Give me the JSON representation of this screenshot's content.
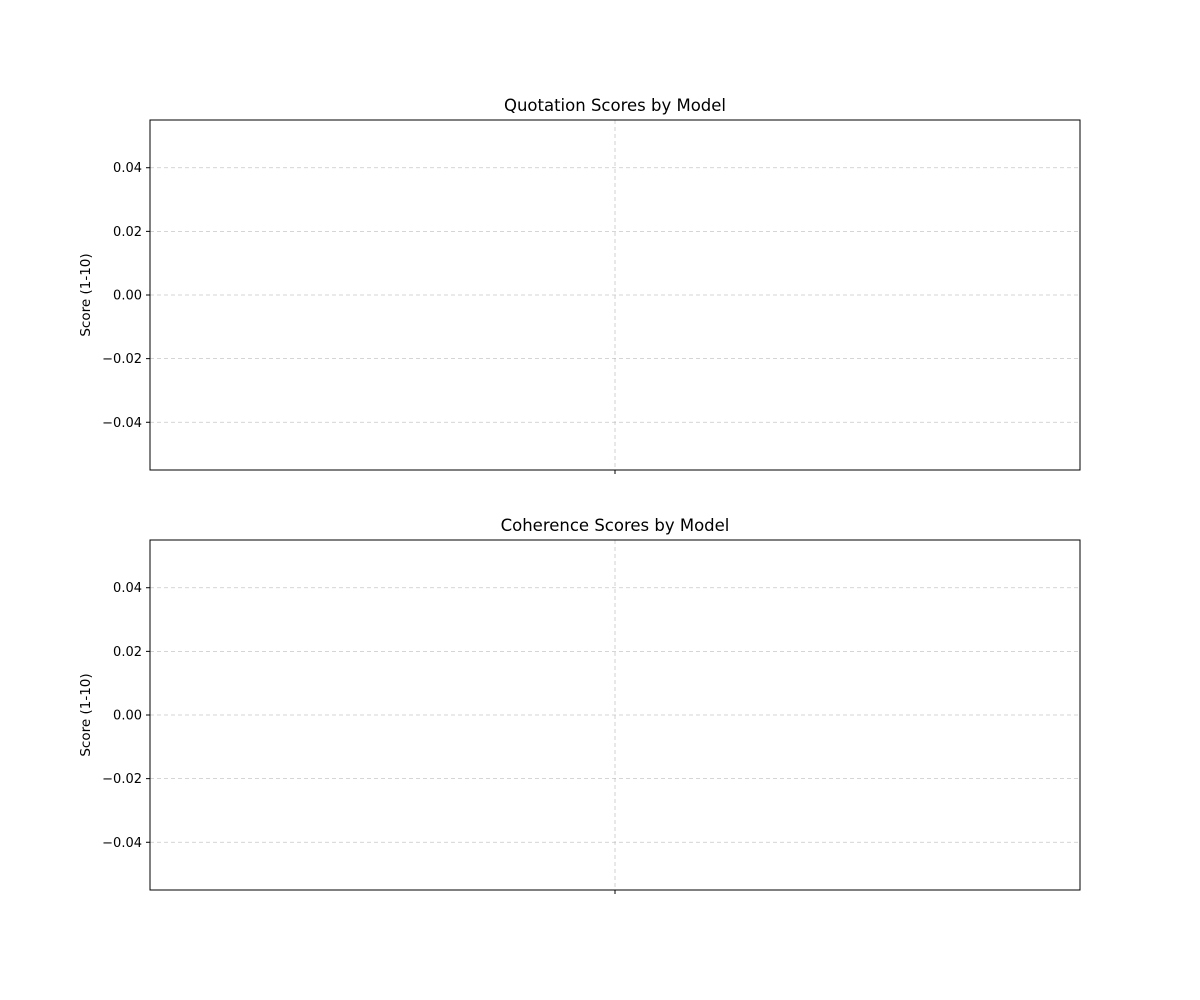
{
  "chart_data": [
    {
      "type": "bar",
      "title": "Quotation Scores by Model",
      "xlabel": "",
      "ylabel": "Score (1-10)",
      "categories": [],
      "series": [],
      "ylim": [
        -0.055,
        0.055
      ],
      "yticks": [
        0.04,
        0.02,
        0.0,
        -0.02,
        -0.04
      ],
      "ytick_labels": [
        "0.04",
        "0.02",
        "0.00",
        "−0.02",
        "−0.04"
      ],
      "grid": true
    },
    {
      "type": "bar",
      "title": "Coherence Scores by Model",
      "xlabel": "",
      "ylabel": "Score (1-10)",
      "categories": [],
      "series": [],
      "ylim": [
        -0.055,
        0.055
      ],
      "yticks": [
        0.04,
        0.02,
        0.0,
        -0.02,
        -0.04
      ],
      "ytick_labels": [
        "0.04",
        "0.02",
        "0.00",
        "−0.02",
        "−0.04"
      ],
      "grid": true
    }
  ]
}
